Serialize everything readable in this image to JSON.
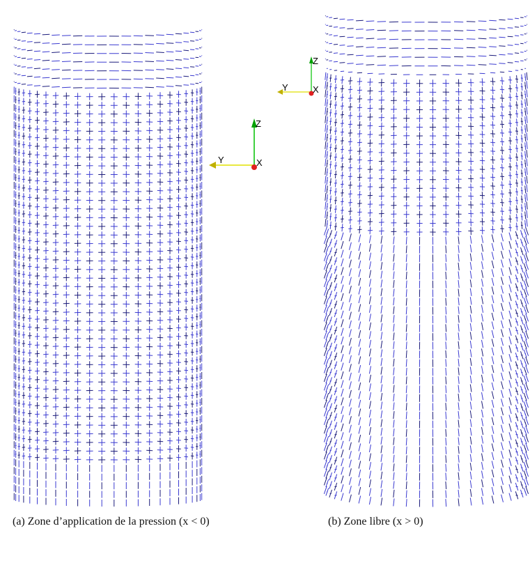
{
  "figure": {
    "panels": [
      {
        "label": "(a)",
        "caption": "Zone d’application de la pression",
        "condition": "(x < 0)"
      },
      {
        "label": "(b)",
        "caption": "Zone libre",
        "condition": "(x > 0)"
      }
    ],
    "axes": [
      {
        "z": "Z",
        "y": "Y",
        "x": "X"
      },
      {
        "z": "Z",
        "y": "Y",
        "x": "X"
      }
    ]
  }
}
